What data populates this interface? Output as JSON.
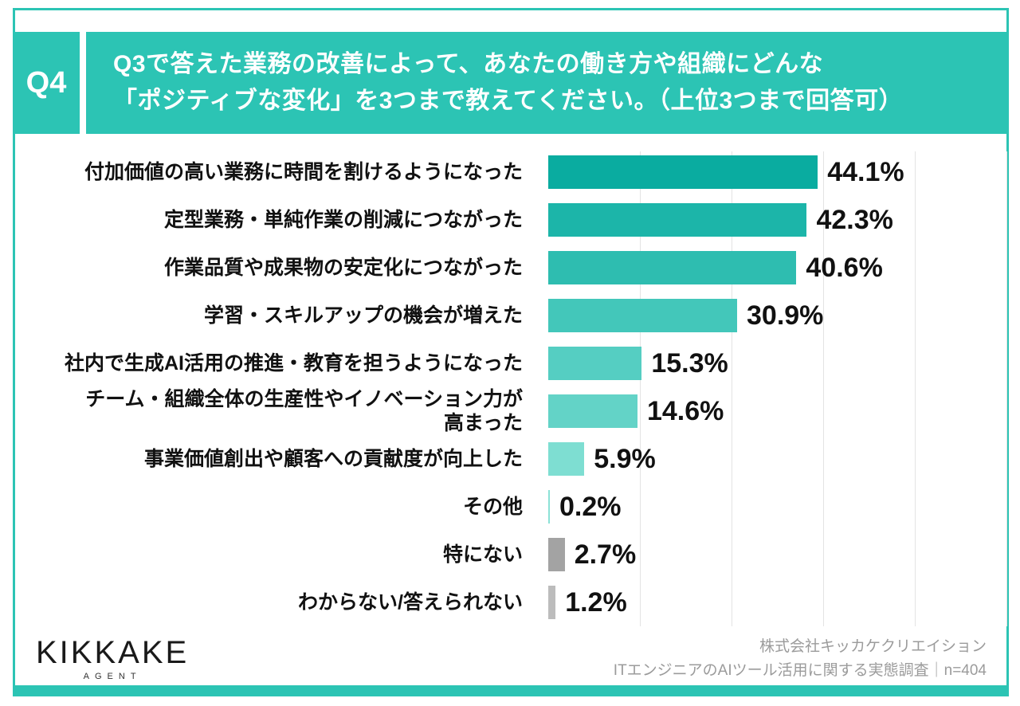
{
  "colors": {
    "accent_teal": "#2cc4b4",
    "gridline": "#e3e3e3",
    "text_dark": "#111111",
    "credit_gray": "#9b9b9b"
  },
  "header": {
    "q_label": "Q4",
    "title_line1": "Q3で答えた業務の改善によって、あなたの働き方や組織にどんな",
    "title_line2": "「ポジティブな変化」を3つまで教えてください。（上位3つまで回答可）"
  },
  "chart_data": {
    "type": "bar",
    "orientation": "horizontal",
    "categories": [
      "付加価値の高い業務に時間を割けるようになった",
      "定型業務・単純作業の削減につながった",
      "作業品質や成果物の安定化につながった",
      "学習・スキルアップの機会が増えた",
      "社内で生成AI活用の推進・教育を担うようになった",
      "チーム・組織全体の生産性やイノベーション力が\n高まった",
      "事業価値創出や顧客への貢献度が向上した",
      "その他",
      "特にない",
      "わからない/答えられない"
    ],
    "values": [
      44.1,
      42.3,
      40.6,
      30.9,
      15.3,
      14.6,
      5.9,
      0.2,
      2.7,
      1.2
    ],
    "value_labels": [
      "44.1%",
      "42.3%",
      "40.6%",
      "30.9%",
      "15.3%",
      "14.6%",
      "5.9%",
      "0.2%",
      "2.7%",
      "1.2%"
    ],
    "bar_colors": [
      "#0aaca0",
      "#1cb5a9",
      "#2ebdb0",
      "#43c7ba",
      "#55cec2",
      "#63d3c7",
      "#7eded2",
      "#8ce2d7",
      "#a3a3a3",
      "#bcbcbc"
    ],
    "title": "",
    "xlabel": "",
    "ylabel": "",
    "xlim": [
      0,
      75
    ],
    "gridline_step": 15,
    "grid": true,
    "legend": false
  },
  "footer": {
    "logo_text": "KIKKAKE",
    "logo_sub": "AGENT",
    "credit_line1": "株式会社キッカケクリエイション",
    "credit_line2": "ITエンジニアのAIツール活用に関する実態調査｜n=404"
  }
}
